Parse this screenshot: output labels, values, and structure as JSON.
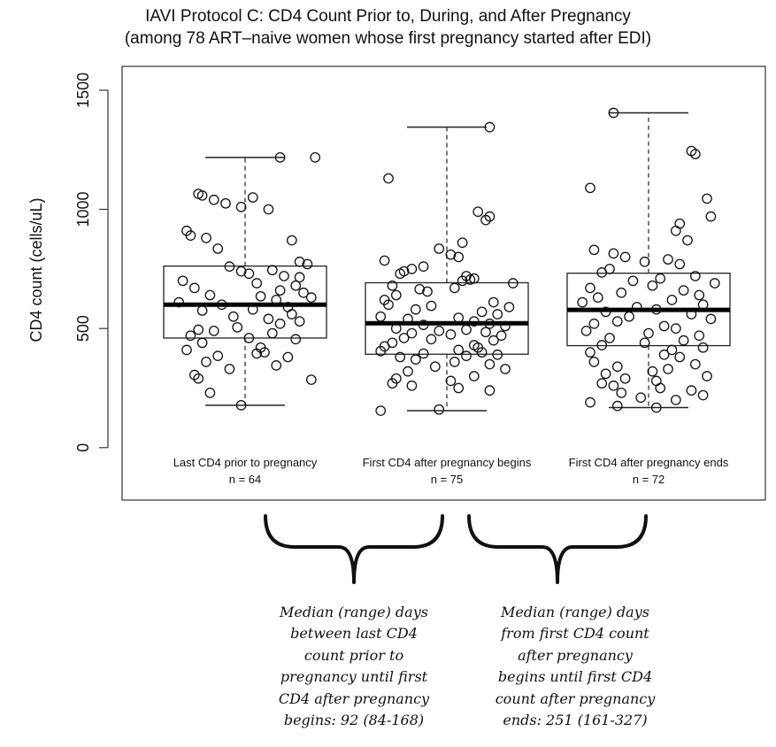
{
  "chart_data": {
    "type": "box",
    "title": "IAVI Protocol C: CD4 Count Prior to, During, and After Pregnancy",
    "subtitle": "(among 78 ART–naive women whose first pregnancy started after EDI)",
    "xlabel": "",
    "ylabel": "CD4 count (cells/uL)",
    "ylim": [
      -220,
      1600
    ],
    "yticks": [
      0,
      500,
      1000,
      1500
    ],
    "grid": false,
    "groups": [
      {
        "label": "Last CD4 prior to pregnancy",
        "n_label": "n = 64",
        "whisker_low": 178,
        "q1": 460,
        "median": 600,
        "q3": 762,
        "whisker_high": 1218,
        "points": [
          1218,
          1218,
          1065,
          1058,
          1050,
          1040,
          1025,
          1010,
          1000,
          910,
          890,
          880,
          870,
          835,
          780,
          770,
          760,
          745,
          740,
          730,
          720,
          715,
          700,
          690,
          680,
          670,
          660,
          650,
          640,
          635,
          630,
          620,
          610,
          600,
          590,
          580,
          575,
          560,
          550,
          540,
          530,
          520,
          505,
          495,
          490,
          480,
          470,
          460,
          455,
          440,
          420,
          410,
          400,
          395,
          385,
          380,
          360,
          345,
          330,
          305,
          290,
          285,
          230,
          178
        ],
        "jitter": [
          0.45,
          0.9,
          -0.6,
          -0.55,
          0.1,
          -0.4,
          -0.25,
          -0.05,
          0.3,
          -0.75,
          -0.7,
          -0.5,
          0.6,
          -0.35,
          0.7,
          0.8,
          -0.2,
          0.35,
          -0.05,
          0.05,
          0.5,
          0.7,
          -0.8,
          0.15,
          0.65,
          -0.65,
          0.45,
          0.75,
          -0.45,
          0.2,
          0.85,
          0.4,
          -0.85,
          -0.3,
          0.55,
          0.1,
          -0.55,
          0.6,
          -0.15,
          0.3,
          0.7,
          0.45,
          -0.1,
          -0.6,
          -0.4,
          0.35,
          -0.7,
          0.05,
          0.65,
          -0.55,
          0.2,
          -0.75,
          0.25,
          0.15,
          -0.35,
          0.55,
          -0.5,
          0.4,
          -0.2,
          -0.65,
          -0.6,
          0.85,
          -0.45,
          -0.05
        ]
      },
      {
        "label": "First CD4 after pregnancy begins",
        "n_label": "n = 75",
        "whisker_low": 155,
        "q1": 392,
        "median": 522,
        "q3": 692,
        "whisker_high": 1345,
        "points": [
          1345,
          1130,
          990,
          970,
          955,
          860,
          835,
          810,
          800,
          785,
          760,
          750,
          740,
          730,
          720,
          710,
          705,
          700,
          690,
          680,
          670,
          665,
          655,
          640,
          620,
          610,
          600,
          595,
          590,
          580,
          570,
          560,
          550,
          545,
          540,
          530,
          520,
          515,
          510,
          500,
          495,
          490,
          485,
          480,
          475,
          470,
          460,
          455,
          450,
          440,
          430,
          425,
          420,
          410,
          405,
          400,
          395,
          390,
          385,
          380,
          370,
          360,
          350,
          340,
          330,
          320,
          300,
          290,
          280,
          270,
          260,
          250,
          240,
          160,
          155
        ],
        "jitter": [
          0.55,
          -0.75,
          0.4,
          0.55,
          0.5,
          0.2,
          -0.1,
          0.05,
          0.15,
          -0.8,
          -0.3,
          -0.45,
          -0.55,
          -0.6,
          0.25,
          0.35,
          0.3,
          0.2,
          0.85,
          -0.7,
          0.1,
          -0.35,
          -0.25,
          -0.65,
          -0.8,
          0.6,
          -0.75,
          -0.2,
          0.8,
          -0.4,
          0.45,
          0.65,
          -0.85,
          0.15,
          -0.5,
          0.35,
          0.55,
          -0.3,
          0.75,
          -0.65,
          0.25,
          -0.1,
          0.5,
          -0.45,
          0.05,
          0.7,
          -0.55,
          -0.2,
          0.6,
          -0.7,
          0.35,
          -0.8,
          0.4,
          0.15,
          -0.85,
          0.45,
          -0.3,
          0.65,
          0.25,
          -0.6,
          -0.4,
          0.1,
          0.55,
          -0.15,
          0.75,
          -0.5,
          0.35,
          -0.65,
          0.05,
          -0.7,
          -0.45,
          0.15,
          0.55,
          -0.1,
          -0.85
        ]
      },
      {
        "label": "First CD4 after pregnancy ends",
        "n_label": "n = 72",
        "whisker_low": 168,
        "q1": 428,
        "median": 578,
        "q3": 732,
        "whisker_high": 1405,
        "points": [
          1405,
          1245,
          1232,
          1090,
          1045,
          970,
          940,
          910,
          870,
          830,
          815,
          800,
          790,
          780,
          770,
          750,
          735,
          720,
          710,
          700,
          690,
          680,
          670,
          660,
          650,
          640,
          630,
          620,
          610,
          600,
          590,
          580,
          570,
          560,
          550,
          540,
          530,
          520,
          510,
          500,
          490,
          480,
          470,
          460,
          450,
          440,
          430,
          420,
          410,
          400,
          390,
          380,
          360,
          350,
          340,
          330,
          320,
          310,
          300,
          290,
          280,
          270,
          260,
          250,
          240,
          230,
          220,
          210,
          200,
          190,
          175,
          168
        ],
        "jitter": [
          -0.45,
          0.55,
          0.6,
          -0.75,
          0.75,
          0.8,
          0.4,
          0.35,
          0.5,
          -0.7,
          -0.45,
          -0.3,
          0.25,
          -0.05,
          0.4,
          -0.5,
          -0.6,
          0.6,
          0.15,
          -0.2,
          0.85,
          0.05,
          -0.75,
          0.45,
          -0.35,
          0.65,
          -0.65,
          0.3,
          -0.85,
          0.7,
          -0.15,
          0.1,
          -0.55,
          0.55,
          -0.25,
          0.8,
          -0.4,
          -0.7,
          0.2,
          0.35,
          -0.8,
          0.0,
          0.65,
          -0.5,
          0.45,
          -0.05,
          -0.6,
          0.7,
          0.3,
          -0.75,
          0.2,
          0.4,
          -0.7,
          0.6,
          -0.4,
          0.25,
          0.05,
          -0.55,
          0.75,
          -0.3,
          0.1,
          -0.6,
          -0.45,
          0.15,
          0.55,
          -0.35,
          0.7,
          -0.1,
          0.35,
          -0.75,
          -0.4,
          0.1
        ]
      }
    ]
  },
  "annotations": [
    {
      "text": "Median (range) days\nbetween last CD4\ncount prior to\npregnancy until first\nCD4 after pregnancy\nbegins: 92 (84-168)"
    },
    {
      "text": "Median (range) days\nfrom first CD4 count\nafter pregnancy\nbegins until first CD4\ncount after pregnancy\nends: 251 (161-327)"
    }
  ]
}
